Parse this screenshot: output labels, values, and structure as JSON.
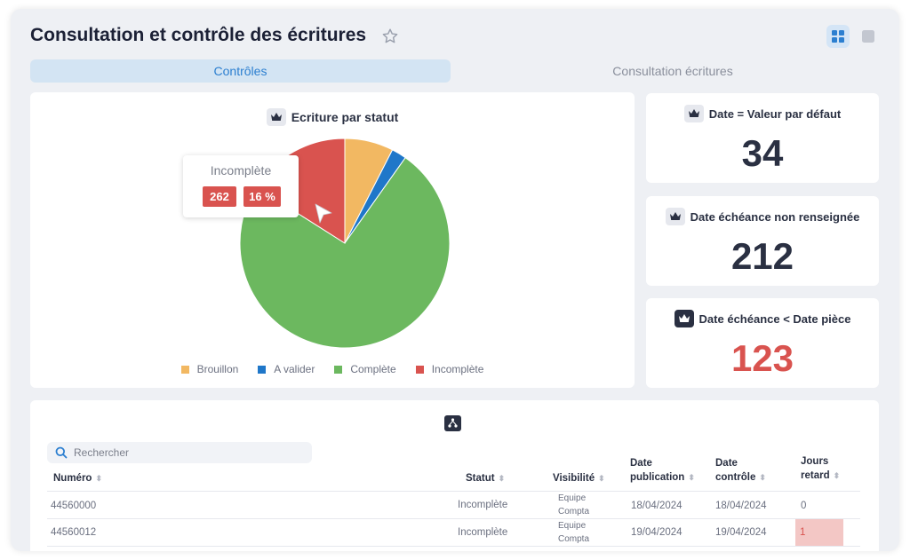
{
  "header": {
    "title": "Consultation et contrôle des écritures",
    "star_icon": "star-outline-icon",
    "view_grid_icon": "grid-view-icon",
    "view_single_icon": "single-view-icon"
  },
  "tabs": [
    {
      "label": "Contrôles",
      "active": true
    },
    {
      "label": "Consultation écritures",
      "active": false
    }
  ],
  "pie_card": {
    "title": "Ecriture par statut",
    "tooltip": {
      "label": "Incomplète",
      "count": "262",
      "percent": "16 %"
    }
  },
  "chart_data": {
    "type": "pie",
    "title": "Ecriture par statut",
    "slices": [
      {
        "label": "Brouillon",
        "value": 7.5,
        "color": "#f2b862"
      },
      {
        "label": "A valider",
        "value": 2.3,
        "color": "#1f77c9"
      },
      {
        "label": "Complète",
        "value": 74.2,
        "color": "#6cb85f"
      },
      {
        "label": "Incomplète",
        "value": 16,
        "color": "#d9534f"
      }
    ],
    "legend": "bottom"
  },
  "kpis": [
    {
      "title": "Date = Valeur par défaut",
      "value": "34",
      "color": "#2a3042"
    },
    {
      "title": "Date échéance non renseignée",
      "value": "212",
      "color": "#2a3042"
    },
    {
      "title": "Date échéance < Date pièce",
      "value": "123",
      "color": "#d9534f"
    }
  ],
  "table": {
    "search_placeholder": "Rechercher",
    "columns": [
      {
        "line1": "Numéro",
        "line2": ""
      },
      {
        "line1": "Statut",
        "line2": ""
      },
      {
        "line1": "Visibilité",
        "line2": ""
      },
      {
        "line1": "Date",
        "line2": "publication"
      },
      {
        "line1": "Date",
        "line2": "contrôle"
      },
      {
        "line1": "Jours",
        "line2": "retard"
      }
    ],
    "rows": [
      {
        "numero": "44560000",
        "statut": "Incomplète",
        "vis1": "Equipe",
        "vis2": "Compta",
        "publication": "18/04/2024",
        "controle": "18/04/2024",
        "retard": "0"
      },
      {
        "numero": "44560012",
        "statut": "Incomplète",
        "vis1": "Equipe",
        "vis2": "Compta",
        "publication": "19/04/2024",
        "controle": "19/04/2024",
        "retard": "1"
      }
    ]
  }
}
